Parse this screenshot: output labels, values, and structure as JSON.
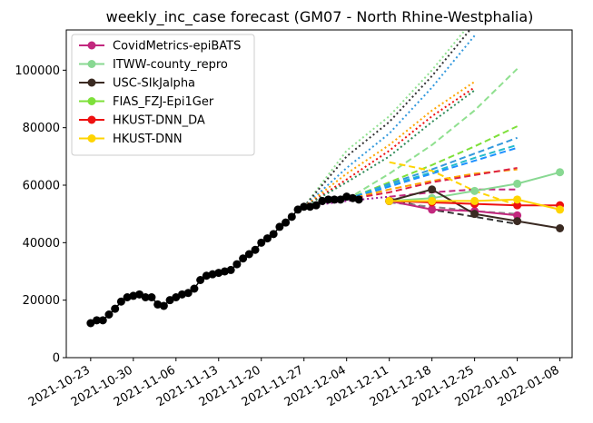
{
  "chart_data": {
    "type": "line",
    "title": "weekly_inc_case forecast (GM07 - North Rhine-Westphalia)",
    "xlabel": "",
    "ylabel": "",
    "xlim": [
      "2021-10-19",
      "2022-01-10"
    ],
    "ylim": [
      0,
      114000
    ],
    "x_ticks": [
      "2021-10-23",
      "2021-10-30",
      "2021-11-06",
      "2021-11-13",
      "2021-11-20",
      "2021-11-27",
      "2021-12-04",
      "2021-12-11",
      "2021-12-18",
      "2021-12-25",
      "2022-01-01",
      "2022-01-08"
    ],
    "y_ticks": [
      0,
      20000,
      40000,
      60000,
      80000,
      100000
    ],
    "y_tick_labels": [
      "0",
      "20000",
      "40000",
      "60000",
      "80000",
      "100000"
    ],
    "legend_position": "upper-left",
    "grid": false,
    "observed": {
      "color": "#000000",
      "x": [
        "2021-10-23",
        "2021-10-24",
        "2021-10-25",
        "2021-10-26",
        "2021-10-27",
        "2021-10-28",
        "2021-10-29",
        "2021-10-30",
        "2021-10-31",
        "2021-11-01",
        "2021-11-02",
        "2021-11-03",
        "2021-11-04",
        "2021-11-05",
        "2021-11-06",
        "2021-11-07",
        "2021-11-08",
        "2021-11-09",
        "2021-11-10",
        "2021-11-11",
        "2021-11-12",
        "2021-11-13",
        "2021-11-14",
        "2021-11-15",
        "2021-11-16",
        "2021-11-17",
        "2021-11-18",
        "2021-11-19",
        "2021-11-20",
        "2021-11-21",
        "2021-11-22",
        "2021-11-23",
        "2021-11-24",
        "2021-11-25",
        "2021-11-26",
        "2021-11-27",
        "2021-11-28",
        "2021-11-29",
        "2021-11-30",
        "2021-12-01",
        "2021-12-02",
        "2021-12-03",
        "2021-12-04",
        "2021-12-05",
        "2021-12-06"
      ],
      "y": [
        12000,
        13000,
        13000,
        15000,
        17000,
        19500,
        21000,
        21500,
        22000,
        21000,
        21000,
        18500,
        18000,
        20000,
        21000,
        22000,
        22500,
        24000,
        27000,
        28500,
        29000,
        29500,
        30000,
        30500,
        32500,
        34500,
        36000,
        37500,
        40000,
        41500,
        43000,
        45500,
        47000,
        49000,
        51500,
        52500,
        52500,
        53000,
        54500,
        55000,
        55000,
        55000,
        56000,
        55500,
        55000
      ]
    },
    "series": [
      {
        "name": "CovidMetrics-epiBATS",
        "color": "#C2287E",
        "x": [
          "2021-12-11",
          "2021-12-18",
          "2021-12-25",
          "2022-01-01"
        ],
        "y": [
          54500,
          51500,
          51000,
          49500
        ]
      },
      {
        "name": "ITWW-county_repro",
        "color": "#88D892",
        "x": [
          "2021-12-11",
          "2021-12-18",
          "2021-12-25",
          "2022-01-01",
          "2022-01-08"
        ],
        "y": [
          54500,
          55500,
          58000,
          60500,
          64500
        ]
      },
      {
        "name": "USC-SIkJalpha",
        "color": "#3A2A22",
        "x": [
          "2021-12-11",
          "2021-12-18",
          "2021-12-25",
          "2022-01-01",
          "2022-01-08"
        ],
        "y": [
          54500,
          58500,
          50000,
          47500,
          45000
        ]
      },
      {
        "name": "FIAS_FZJ-Epi1Ger",
        "color": "#7EE03A",
        "x": [],
        "y": []
      },
      {
        "name": "HKUST-DNN_DA",
        "color": "#EE1111",
        "x": [
          "2021-12-11",
          "2021-12-18",
          "2021-12-25",
          "2022-01-01",
          "2022-01-08"
        ],
        "y": [
          54500,
          54000,
          53500,
          53000,
          53000
        ]
      },
      {
        "name": "HKUST-DNN",
        "color": "#FFD400",
        "x": [
          "2021-12-11",
          "2021-12-18",
          "2021-12-25",
          "2022-01-01",
          "2022-01-08"
        ],
        "y": [
          54500,
          54500,
          54500,
          55000,
          51500
        ]
      }
    ],
    "projections": [
      {
        "color": "#90E090",
        "dash": "dot",
        "x": [
          "2021-11-27",
          "2021-12-04",
          "2021-12-11",
          "2021-12-18",
          "2021-12-25"
        ],
        "y": [
          52500,
          72000,
          84000,
          100000,
          118000
        ]
      },
      {
        "color": "#333333",
        "dash": "dot",
        "x": [
          "2021-11-27",
          "2021-12-04",
          "2021-12-11",
          "2021-12-18",
          "2021-12-25"
        ],
        "y": [
          52500,
          70000,
          82000,
          98000,
          116000
        ]
      },
      {
        "color": "#3399DD",
        "dash": "dot",
        "x": [
          "2021-11-27",
          "2021-12-04",
          "2021-12-11",
          "2021-12-18",
          "2021-12-25"
        ],
        "y": [
          52500,
          66000,
          78000,
          94000,
          112000
        ]
      },
      {
        "color": "#FFA500",
        "dash": "dot",
        "x": [
          "2021-11-27",
          "2021-12-04",
          "2021-12-11",
          "2021-12-18",
          "2021-12-25"
        ],
        "y": [
          52500,
          64000,
          74000,
          86000,
          96000
        ]
      },
      {
        "color": "#EE1111",
        "dash": "dot",
        "x": [
          "2021-11-27",
          "2021-12-04",
          "2021-12-11",
          "2021-12-18",
          "2021-12-25"
        ],
        "y": [
          52500,
          62000,
          72000,
          84000,
          94000
        ]
      },
      {
        "color": "#2E8B57",
        "dash": "dot",
        "x": [
          "2021-11-27",
          "2021-12-04",
          "2021-12-11",
          "2021-12-18",
          "2021-12-25"
        ],
        "y": [
          52500,
          61000,
          70000,
          82000,
          93000
        ]
      },
      {
        "color": "#A020A0",
        "dash": "dot",
        "x": [
          "2021-11-27",
          "2021-12-04",
          "2021-12-11"
        ],
        "y": [
          52500,
          54500,
          56000
        ]
      },
      {
        "color": "#90E090",
        "dash": "dash",
        "x": [
          "2021-12-04",
          "2021-12-11",
          "2021-12-18",
          "2021-12-25",
          "2022-01-01"
        ],
        "y": [
          55000,
          64000,
          74000,
          86000,
          100500
        ]
      },
      {
        "color": "#7EE03A",
        "dash": "dash",
        "x": [
          "2021-12-04",
          "2021-12-11",
          "2021-12-18",
          "2021-12-25",
          "2022-01-01"
        ],
        "y": [
          55000,
          61000,
          67000,
          73500,
          80500
        ]
      },
      {
        "color": "#3399DD",
        "dash": "dash",
        "x": [
          "2021-12-04",
          "2021-12-11",
          "2021-12-18",
          "2021-12-25",
          "2022-01-01"
        ],
        "y": [
          55000,
          60500,
          65500,
          71000,
          76500
        ]
      },
      {
        "color": "#22BBCC",
        "dash": "dash",
        "x": [
          "2021-12-04",
          "2021-12-11",
          "2021-12-18",
          "2021-12-25",
          "2022-01-01"
        ],
        "y": [
          55000,
          60000,
          64500,
          69500,
          74000
        ]
      },
      {
        "color": "#1E90FF",
        "dash": "dash",
        "x": [
          "2021-12-04",
          "2021-12-11",
          "2021-12-18",
          "2021-12-25",
          "2022-01-01"
        ],
        "y": [
          55000,
          59500,
          64000,
          68500,
          73000
        ]
      },
      {
        "color": "#FFA500",
        "dash": "dash",
        "x": [
          "2021-12-04",
          "2021-12-11",
          "2021-12-18",
          "2021-12-25",
          "2022-01-01"
        ],
        "y": [
          55000,
          58500,
          61500,
          64000,
          65500
        ]
      },
      {
        "color": "#DD2244",
        "dash": "dash",
        "x": [
          "2021-12-04",
          "2021-12-11",
          "2021-12-18",
          "2021-12-25",
          "2022-01-01"
        ],
        "y": [
          55000,
          57500,
          61000,
          63500,
          66000
        ]
      },
      {
        "color": "#FFD400",
        "dash": "dash",
        "x": [
          "2021-12-11",
          "2021-12-18",
          "2021-12-25",
          "2022-01-01"
        ],
        "y": [
          68000,
          65000,
          58000,
          53000
        ]
      },
      {
        "color": "#C2287E",
        "dash": "dash",
        "x": [
          "2021-12-11",
          "2021-12-18",
          "2021-12-25",
          "2022-01-01"
        ],
        "y": [
          56000,
          57500,
          58500,
          58500
        ]
      },
      {
        "color": "#333333",
        "dash": "dash",
        "x": [
          "2021-12-11",
          "2021-12-18",
          "2021-12-25",
          "2022-01-01"
        ],
        "y": [
          55500,
          51500,
          49000,
          46500
        ]
      },
      {
        "color": "#888888",
        "dash": "dash",
        "x": [
          "2021-12-11",
          "2021-12-18",
          "2021-12-25",
          "2022-01-01"
        ],
        "y": [
          54000,
          52500,
          51000,
          50000
        ]
      }
    ]
  }
}
